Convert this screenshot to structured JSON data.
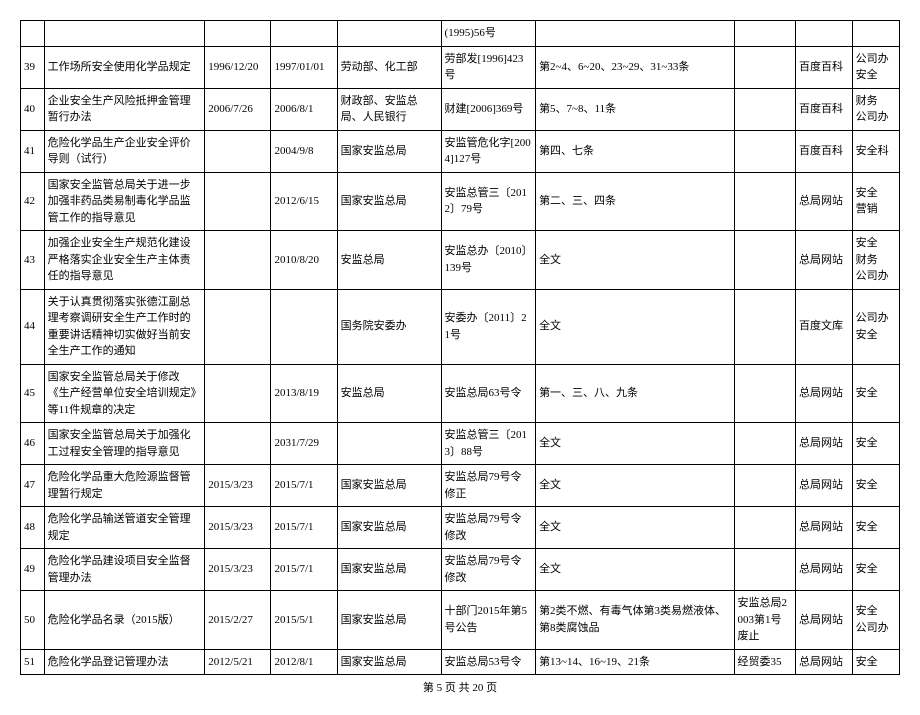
{
  "table": {
    "rows": [
      {
        "idx": "",
        "name": "",
        "d1": "",
        "d2": "",
        "org": "",
        "num": "(1995)56号",
        "art": "",
        "note": "",
        "src": "",
        "dept": ""
      },
      {
        "idx": "39",
        "name": "工作场所安全使用化学品规定",
        "d1": "1996/12/20",
        "d2": "1997/01/01",
        "org": "劳动部、化工部",
        "num": "劳部发[1996]423号",
        "art": "第2~4、6~20、23~29、31~33条",
        "note": "",
        "src": "百度百科",
        "dept": "公司办\n安全"
      },
      {
        "idx": "40",
        "name": "企业安全生产风险抵押金管理暂行办法",
        "d1": "2006/7/26",
        "d2": "2006/8/1",
        "org": "财政部、安监总局、人民银行",
        "num": "财建[2006]369号",
        "art": "第5、7~8、11条",
        "note": "",
        "src": "百度百科",
        "dept": "财务\n公司办"
      },
      {
        "idx": "41",
        "name": "危险化学品生产企业安全评价导则（试行）",
        "d1": "",
        "d2": "2004/9/8",
        "org": "国家安监总局",
        "num": "安监管危化字[2004]127号",
        "art": "第四、七条",
        "note": "",
        "src": "百度百科",
        "dept": "安全科"
      },
      {
        "idx": "42",
        "name": "国家安全监管总局关于进一步加强非药品类易制毒化学品监管工作的指导意见",
        "d1": "",
        "d2": "2012/6/15",
        "org": "国家安监总局",
        "num": "安监总管三〔2012〕79号",
        "art": "第二、三、四条",
        "note": "",
        "src": "总局网站",
        "dept": "安全\n营销"
      },
      {
        "idx": "43",
        "name": "加强企业安全生产规范化建设严格落实企业安全生产主体责任的指导意见",
        "d1": "",
        "d2": "2010/8/20",
        "org": "安监总局",
        "num": "安监总办〔2010〕139号",
        "art": "全文",
        "note": "",
        "src": "总局网站",
        "dept": "安全\n财务\n公司办"
      },
      {
        "idx": "44",
        "name": "关于认真贯彻落实张德江副总理考察调研安全生产工作时的重要讲话精神切实做好当前安全生产工作的通知",
        "d1": "",
        "d2": "",
        "org": "国务院安委办",
        "num": "安委办〔2011〕21号",
        "art": "全文",
        "note": "",
        "src": "百度文库",
        "dept": "公司办\n安全"
      },
      {
        "idx": "45",
        "name": "国家安全监管总局关于修改《生产经营单位安全培训规定》等11件规章的决定",
        "d1": "",
        "d2": "2013/8/19",
        "org": "安监总局",
        "num": "安监总局63号令",
        "art": "第一、三、八、九条",
        "note": "",
        "src": "总局网站",
        "dept": "安全"
      },
      {
        "idx": "46",
        "name": "国家安全监管总局关于加强化工过程安全管理的指导意见",
        "d1": "",
        "d2": "2031/7/29",
        "org": "",
        "num": "安监总管三〔2013〕88号",
        "art": "全文",
        "note": "",
        "src": "总局网站",
        "dept": "安全"
      },
      {
        "idx": "47",
        "name": "危险化学品重大危险源监督管理暂行规定",
        "d1": "2015/3/23",
        "d2": "2015/7/1",
        "org": "国家安监总局",
        "num": "安监总局79号令修正",
        "art": "全文",
        "note": "",
        "src": "总局网站",
        "dept": "安全"
      },
      {
        "idx": "48",
        "name": "危险化学品输送管道安全管理规定",
        "d1": "2015/3/23",
        "d2": "2015/7/1",
        "org": "国家安监总局",
        "num": "安监总局79号令修改",
        "art": "全文",
        "note": "",
        "src": "总局网站",
        "dept": "安全"
      },
      {
        "idx": "49",
        "name": "危险化学品建设项目安全监督管理办法",
        "d1": "2015/3/23",
        "d2": "2015/7/1",
        "org": "国家安监总局",
        "num": "安监总局79号令修改",
        "art": "全文",
        "note": "",
        "src": "总局网站",
        "dept": "安全"
      },
      {
        "idx": "50",
        "name": "危险化学品名录（2015版）",
        "d1": "2015/2/27",
        "d2": "2015/5/1",
        "org": "国家安监总局",
        "num": "十部门2015年第5号公告",
        "art": "第2类不燃、有毒气体第3类易燃液体、第8类腐蚀品",
        "note": "安监总局2003第1号废止",
        "src": "总局网站",
        "dept": "安全\n公司办"
      },
      {
        "idx": "51",
        "name": "危险化学品登记管理办法",
        "d1": "2012/5/21",
        "d2": "2012/8/1",
        "org": "国家安监总局",
        "num": "安监总局53号令",
        "art": "第13~14、16~19、21条",
        "note": "经贸委35",
        "src": "总局网站",
        "dept": "安全"
      }
    ]
  },
  "footer": "第 5 页 共 20 页"
}
